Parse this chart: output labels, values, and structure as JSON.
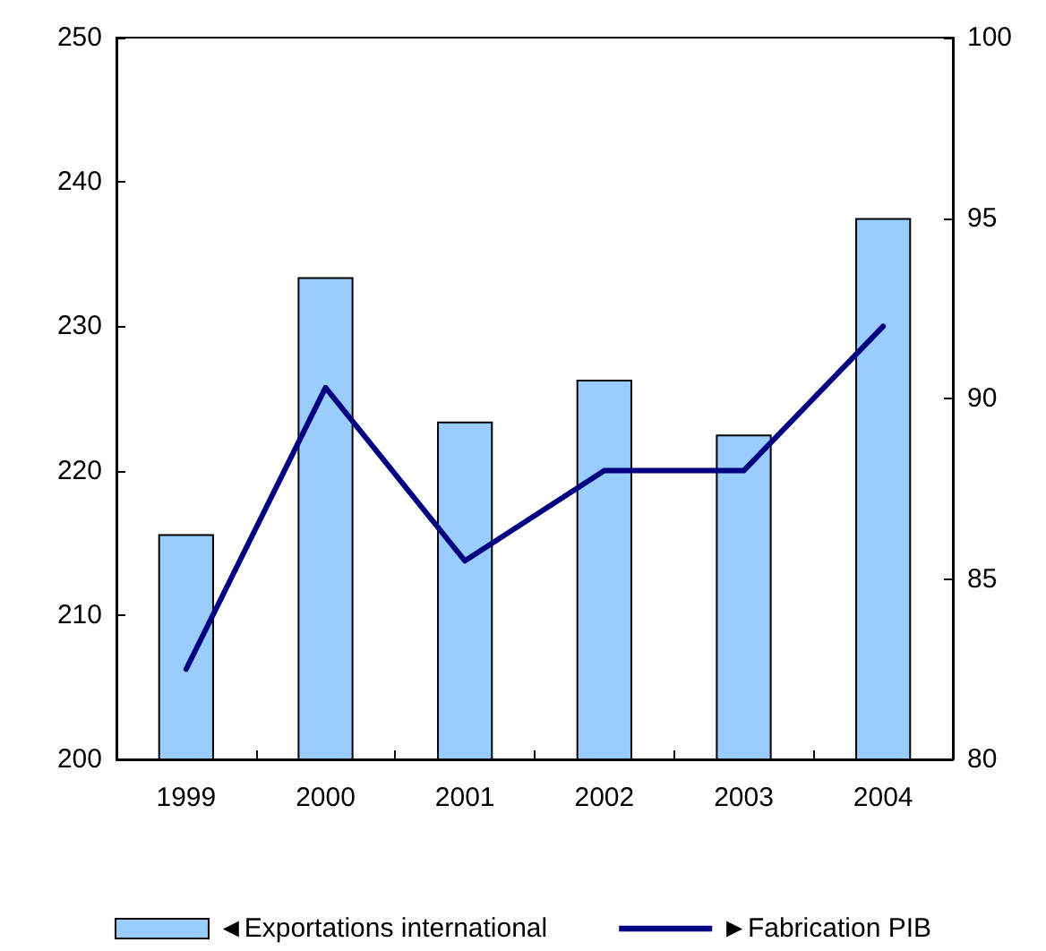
{
  "chart_data": {
    "type": "bar",
    "categories": [
      "1999",
      "2000",
      "2001",
      "2002",
      "2003",
      "2004"
    ],
    "series": [
      {
        "name": "◄Exportations international",
        "color": "#99ccff",
        "values": [
          215.6,
          233.4,
          223.4,
          226.3,
          222.5,
          237.5
        ]
      },
      {
        "name": "►Fabrication PIB",
        "type": "line",
        "axis": "y2",
        "color": "#000080",
        "values": [
          82.5,
          90.3,
          85.5,
          88.0,
          88.0,
          92.0
        ]
      }
    ],
    "ylim": [
      200,
      250
    ],
    "yticks": [
      200,
      210,
      220,
      230,
      240,
      250
    ],
    "y2lim": [
      80,
      100
    ],
    "y2ticks": [
      80,
      85,
      90,
      95,
      100
    ],
    "grid": false,
    "legend": "bottom",
    "marker": "none",
    "line_style": "solid"
  }
}
